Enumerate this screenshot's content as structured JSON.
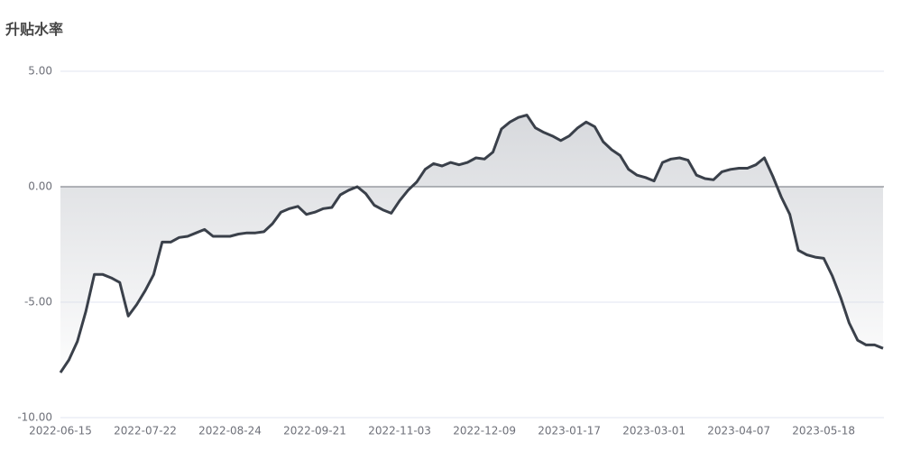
{
  "chart_data": {
    "type": "area-line",
    "title": "升贴水率",
    "categories": [
      "2022-06-15",
      null,
      null,
      null,
      null,
      null,
      null,
      null,
      null,
      null,
      "2022-07-22",
      null,
      null,
      null,
      null,
      null,
      null,
      null,
      null,
      null,
      "2022-08-24",
      null,
      null,
      null,
      null,
      null,
      null,
      null,
      null,
      null,
      "2022-09-21",
      null,
      null,
      null,
      null,
      null,
      null,
      null,
      null,
      null,
      "2022-11-03",
      null,
      null,
      null,
      null,
      null,
      null,
      null,
      null,
      null,
      "2022-12-09",
      null,
      null,
      null,
      null,
      null,
      null,
      null,
      null,
      null,
      "2023-01-17",
      null,
      null,
      null,
      null,
      null,
      null,
      null,
      null,
      null,
      "2023-03-01",
      null,
      null,
      null,
      null,
      null,
      null,
      null,
      null,
      null,
      "2023-04-07",
      null,
      null,
      null,
      null,
      null,
      null,
      null,
      null,
      null,
      "2023-05-18",
      null,
      null,
      null,
      null,
      null,
      null,
      null
    ],
    "values": [
      -8.05,
      -7.5,
      -6.7,
      -5.4,
      -3.8,
      -3.8,
      -3.95,
      -4.15,
      -5.6,
      -5.1,
      -4.5,
      -3.8,
      -2.4,
      -2.4,
      -2.2,
      -2.15,
      -2.0,
      -1.85,
      -2.15,
      -2.15,
      -2.15,
      -2.05,
      -2.0,
      -2.0,
      -1.95,
      -1.6,
      -1.1,
      -0.95,
      -0.85,
      -1.2,
      -1.1,
      -0.95,
      -0.9,
      -0.35,
      -0.15,
      0.0,
      -0.3,
      -0.8,
      -1.0,
      -1.15,
      -0.6,
      -0.15,
      0.2,
      0.75,
      1.0,
      0.9,
      1.05,
      0.95,
      1.05,
      1.25,
      1.2,
      1.5,
      2.5,
      2.8,
      3.0,
      3.1,
      2.55,
      2.35,
      2.2,
      2.0,
      2.2,
      2.55,
      2.8,
      2.6,
      1.95,
      1.6,
      1.35,
      0.75,
      0.5,
      0.4,
      0.25,
      1.05,
      1.2,
      1.25,
      1.15,
      0.5,
      0.35,
      0.3,
      0.65,
      0.75,
      0.8,
      0.8,
      0.95,
      1.25,
      0.45,
      -0.45,
      -1.2,
      -2.75,
      -2.95,
      -3.05,
      -3.1,
      -3.85,
      -4.8,
      -5.9,
      -6.65,
      -6.85,
      -6.85,
      -7.0
    ],
    "color": "#3a404a",
    "area_color": "#d5d7db",
    "ylim": [
      -10,
      5
    ],
    "yticks": [
      {
        "value": -10,
        "label": "-10.00"
      },
      {
        "value": -5,
        "label": "-5.00"
      },
      {
        "value": 0,
        "label": "0.00"
      },
      {
        "value": 5,
        "label": "5.00"
      }
    ],
    "grid": true
  }
}
